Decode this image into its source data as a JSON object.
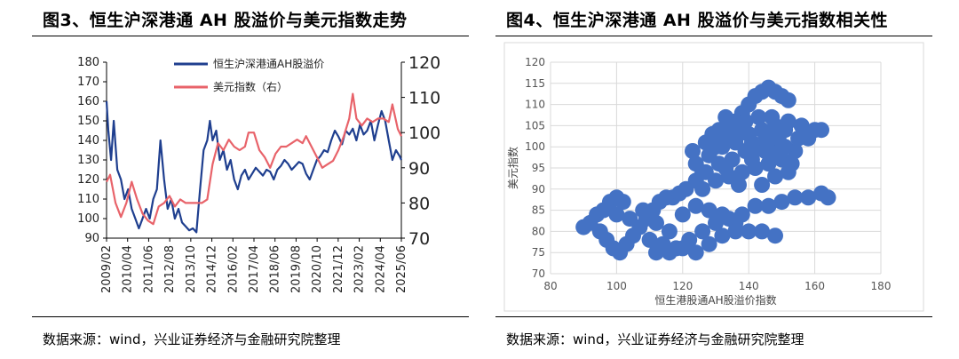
{
  "left": {
    "title": "图3、恒生沪深港通 AH 股溢价与美元指数走势",
    "source": "数据来源：wind，兴业证券经济与金融研究院整理",
    "legend": [
      "恒生沪深港通AH股溢价",
      "美元指数（右）"
    ],
    "colors": {
      "ah": "#1f3f8f",
      "dxy": "#e8636a"
    }
  },
  "right": {
    "title": "图4、恒生沪深港通 AH 股溢价与美元指数相关性",
    "source": "数据来源：wind，兴业证券经济与金融研究院整理",
    "colors": {
      "dots": "#4472c4",
      "grid": "#d9d9d9",
      "border": "#d9d9d9"
    }
  },
  "chart_data": [
    {
      "type": "line",
      "title": "图3、恒生沪深港通 AH 股溢价与美元指数走势",
      "x_categories": [
        "2009/02",
        "2010/04",
        "2011/06",
        "2012/08",
        "2013/10",
        "2014/12",
        "2016/02",
        "2017/04",
        "2018/06",
        "2019/08",
        "2020/10",
        "2021/12",
        "2023/02",
        "2024/04",
        "2025/06"
      ],
      "ylim_left": [
        90,
        180
      ],
      "yticks_left": [
        "90",
        "100",
        "110",
        "120",
        "130",
        "140",
        "150",
        "160",
        "170",
        "180"
      ],
      "ylim_right": [
        70,
        120
      ],
      "yticks_right": [
        "70",
        "80",
        "90",
        "100",
        "110",
        "120"
      ],
      "legend_position": "top-center",
      "grid": false,
      "series": [
        {
          "name": "恒生沪深港通AH股溢价",
          "axis": "left",
          "x": [
            2009.1,
            2009.2,
            2009.35,
            2009.5,
            2009.7,
            2009.9,
            2010.1,
            2010.3,
            2010.5,
            2010.7,
            2010.9,
            2011.1,
            2011.3,
            2011.5,
            2011.7,
            2011.9,
            2012.1,
            2012.3,
            2012.5,
            2012.7,
            2012.9,
            2013.1,
            2013.3,
            2013.5,
            2013.7,
            2013.9,
            2014.1,
            2014.3,
            2014.5,
            2014.7,
            2014.85,
            2015.0,
            2015.2,
            2015.4,
            2015.6,
            2015.8,
            2016.0,
            2016.2,
            2016.4,
            2016.6,
            2016.8,
            2017.0,
            2017.2,
            2017.4,
            2017.6,
            2017.8,
            2018.0,
            2018.2,
            2018.4,
            2018.6,
            2018.8,
            2019.0,
            2019.2,
            2019.4,
            2019.6,
            2019.8,
            2020.0,
            2020.2,
            2020.4,
            2020.6,
            2020.8,
            2021.0,
            2021.2,
            2021.4,
            2021.6,
            2021.8,
            2022.0,
            2022.2,
            2022.4,
            2022.6,
            2022.8,
            2023.0,
            2023.2,
            2023.4,
            2023.6,
            2023.8,
            2024.0,
            2024.2,
            2024.4,
            2024.6,
            2024.8,
            2025.0,
            2025.2,
            2025.4,
            2025.5
          ],
          "values": [
            160,
            145,
            130,
            150,
            125,
            120,
            110,
            115,
            105,
            100,
            95,
            100,
            105,
            100,
            110,
            115,
            140,
            120,
            105,
            110,
            100,
            105,
            98,
            96,
            94,
            95,
            93,
            115,
            135,
            140,
            150,
            140,
            145,
            130,
            135,
            125,
            130,
            120,
            115,
            122,
            125,
            120,
            123,
            126,
            124,
            122,
            125,
            124,
            120,
            125,
            127,
            130,
            128,
            125,
            127,
            129,
            128,
            123,
            120,
            125,
            130,
            132,
            135,
            134,
            140,
            145,
            142,
            138,
            145,
            143,
            146,
            140,
            148,
            143,
            145,
            150,
            140,
            148,
            155,
            150,
            140,
            130,
            135,
            132,
            130
          ]
        },
        {
          "name": "美元指数（右）",
          "axis": "right",
          "x": [
            2009.1,
            2009.3,
            2009.6,
            2009.9,
            2010.2,
            2010.5,
            2010.8,
            2011.1,
            2011.4,
            2011.7,
            2012.0,
            2012.3,
            2012.6,
            2012.9,
            2013.2,
            2013.5,
            2013.8,
            2014.1,
            2014.4,
            2014.7,
            2015.0,
            2015.3,
            2015.6,
            2015.9,
            2016.2,
            2016.5,
            2016.8,
            2017.0,
            2017.3,
            2017.6,
            2017.9,
            2018.2,
            2018.5,
            2018.8,
            2019.1,
            2019.4,
            2019.7,
            2020.0,
            2020.2,
            2020.5,
            2020.8,
            2021.1,
            2021.4,
            2021.7,
            2022.0,
            2022.3,
            2022.6,
            2022.8,
            2023.0,
            2023.3,
            2023.6,
            2023.9,
            2024.2,
            2024.5,
            2024.8,
            2025.0,
            2025.3,
            2025.5
          ],
          "values": [
            86,
            88,
            80,
            76,
            80,
            86,
            81,
            77,
            75,
            74,
            79,
            80,
            82,
            79,
            81,
            80,
            80,
            80,
            80,
            81,
            91,
            97,
            95,
            98,
            96,
            95,
            96,
            100,
            100,
            95,
            93,
            90,
            94,
            96,
            96,
            97,
            98,
            97,
            99,
            96,
            93,
            90,
            91,
            92,
            95,
            99,
            104,
            111,
            104,
            102,
            104,
            103,
            104,
            104,
            103,
            108,
            101,
            99
          ]
        }
      ]
    },
    {
      "type": "scatter",
      "title": "图4、恒生沪深港通 AH 股溢价与美元指数相关性",
      "xlabel": "恒生港股通AH股溢价指数",
      "ylabel": "美元指数",
      "xlim": [
        80,
        180
      ],
      "xticks": [
        "80",
        "100",
        "120",
        "140",
        "160",
        "180"
      ],
      "ylim": [
        70,
        120
      ],
      "yticks": [
        "70",
        "75",
        "80",
        "85",
        "90",
        "95",
        "100",
        "105",
        "110",
        "115",
        "120"
      ],
      "grid": true,
      "points": [
        [
          90,
          81
        ],
        [
          92,
          82
        ],
        [
          94,
          84
        ],
        [
          96,
          85
        ],
        [
          98,
          87
        ],
        [
          100,
          88
        ],
        [
          102,
          87
        ],
        [
          95,
          80
        ],
        [
          97,
          78
        ],
        [
          99,
          76
        ],
        [
          101,
          75
        ],
        [
          103,
          77
        ],
        [
          105,
          79
        ],
        [
          107,
          81
        ],
        [
          109,
          83
        ],
        [
          111,
          85
        ],
        [
          113,
          87
        ],
        [
          115,
          88
        ],
        [
          117,
          88
        ],
        [
          119,
          89
        ],
        [
          100,
          84
        ],
        [
          104,
          83
        ],
        [
          108,
          85
        ],
        [
          112,
          82
        ],
        [
          116,
          80
        ],
        [
          110,
          78
        ],
        [
          114,
          77
        ],
        [
          118,
          76
        ],
        [
          122,
          78
        ],
        [
          126,
          80
        ],
        [
          130,
          82
        ],
        [
          134,
          83
        ],
        [
          138,
          84
        ],
        [
          142,
          86
        ],
        [
          146,
          86
        ],
        [
          150,
          87
        ],
        [
          154,
          88
        ],
        [
          158,
          88
        ],
        [
          162,
          89
        ],
        [
          164,
          88
        ],
        [
          120,
          84
        ],
        [
          124,
          86
        ],
        [
          128,
          85
        ],
        [
          132,
          84
        ],
        [
          136,
          82
        ],
        [
          140,
          80
        ],
        [
          144,
          80
        ],
        [
          148,
          79
        ],
        [
          112,
          75
        ],
        [
          116,
          75
        ],
        [
          120,
          76
        ],
        [
          124,
          75
        ],
        [
          128,
          77
        ],
        [
          132,
          79
        ],
        [
          136,
          80
        ],
        [
          121,
          90
        ],
        [
          124,
          92
        ],
        [
          126,
          94
        ],
        [
          128,
          98
        ],
        [
          130,
          100
        ],
        [
          132,
          102
        ],
        [
          134,
          104
        ],
        [
          136,
          106
        ],
        [
          138,
          108
        ],
        [
          140,
          110
        ],
        [
          142,
          112
        ],
        [
          144,
          113
        ],
        [
          146,
          114
        ],
        [
          148,
          113
        ],
        [
          150,
          112
        ],
        [
          152,
          111
        ],
        [
          126,
          90
        ],
        [
          130,
          92
        ],
        [
          134,
          93
        ],
        [
          138,
          94
        ],
        [
          142,
          95
        ],
        [
          146,
          96
        ],
        [
          150,
          97
        ],
        [
          154,
          99
        ],
        [
          158,
          102
        ],
        [
          160,
          104
        ],
        [
          162,
          104
        ],
        [
          124,
          96
        ],
        [
          128,
          98
        ],
        [
          132,
          100
        ],
        [
          136,
          101
        ],
        [
          140,
          103
        ],
        [
          144,
          104
        ],
        [
          148,
          105
        ],
        [
          152,
          106
        ],
        [
          156,
          105
        ],
        [
          123,
          99
        ],
        [
          127,
          101
        ],
        [
          131,
          104
        ],
        [
          135,
          105
        ],
        [
          139,
          106
        ],
        [
          143,
          107
        ],
        [
          147,
          107
        ],
        [
          151,
          104
        ],
        [
          155,
          102
        ],
        [
          127,
          94
        ],
        [
          131,
          96
        ],
        [
          135,
          97
        ],
        [
          139,
          99
        ],
        [
          143,
          100
        ],
        [
          147,
          101
        ],
        [
          151,
          100
        ],
        [
          141,
          97
        ],
        [
          145,
          99
        ],
        [
          149,
          98
        ],
        [
          153,
          96
        ],
        [
          144,
          91
        ],
        [
          148,
          93
        ],
        [
          152,
          94
        ],
        [
          137,
          91
        ],
        [
          133,
          95
        ],
        [
          129,
          103
        ],
        [
          133,
          107
        ],
        [
          137,
          103
        ],
        [
          141,
          101
        ],
        [
          145,
          103
        ],
        [
          149,
          102
        ]
      ]
    }
  ]
}
